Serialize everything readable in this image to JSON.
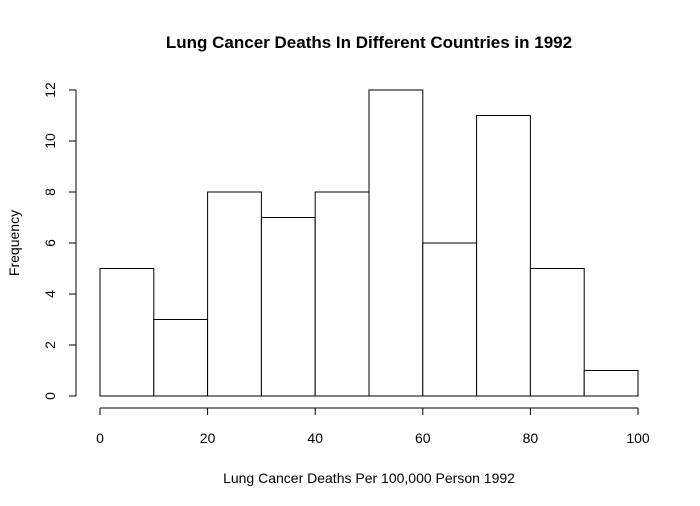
{
  "chart_data": {
    "type": "bar",
    "subtype": "histogram",
    "title": "Lung Cancer Deaths In Different Countries in 1992",
    "xlabel": "Lung Cancer Deaths Per 100,000 Person 1992",
    "ylabel": "Frequency",
    "bin_edges": [
      0,
      10,
      20,
      30,
      40,
      50,
      60,
      70,
      80,
      90,
      100
    ],
    "values": [
      5,
      3,
      8,
      7,
      8,
      12,
      6,
      11,
      5,
      1
    ],
    "xlim": [
      0,
      100
    ],
    "ylim": [
      0,
      12
    ],
    "x_ticks": [
      0,
      20,
      40,
      60,
      80,
      100
    ],
    "y_ticks": [
      0,
      2,
      4,
      6,
      8,
      10,
      12
    ],
    "grid": false,
    "legend": "none",
    "bar_fill": "#ffffff",
    "bar_stroke": "#000000"
  }
}
